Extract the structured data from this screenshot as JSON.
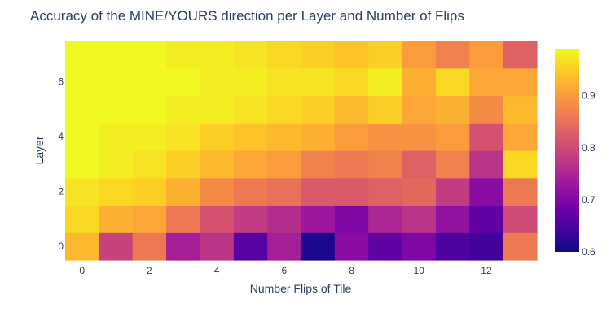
{
  "chart_data": {
    "type": "heatmap",
    "title": "Accuracy of the MINE/YOURS direction per Layer and Number of Flips",
    "xlabel": "Number Flips of Tile",
    "ylabel": "Layer",
    "x": [
      0,
      1,
      2,
      3,
      4,
      5,
      6,
      7,
      8,
      9,
      10,
      11,
      12,
      13
    ],
    "y": [
      0,
      1,
      2,
      3,
      4,
      5,
      6,
      7
    ],
    "x_ticks": [
      "0",
      "2",
      "4",
      "6",
      "8",
      "10",
      "12"
    ],
    "x_tick_values": [
      0,
      2,
      4,
      6,
      8,
      10,
      12
    ],
    "y_ticks": [
      "0",
      "2",
      "4",
      "6"
    ],
    "y_tick_values": [
      0,
      2,
      4,
      6
    ],
    "z": [
      [
        0.93,
        0.79,
        0.86,
        0.74,
        0.77,
        0.66,
        0.74,
        0.61,
        0.71,
        0.67,
        0.7,
        0.65,
        0.64,
        0.86
      ],
      [
        0.96,
        0.92,
        0.91,
        0.86,
        0.81,
        0.78,
        0.76,
        0.73,
        0.7,
        0.75,
        0.77,
        0.72,
        0.67,
        0.8
      ],
      [
        0.97,
        0.96,
        0.95,
        0.92,
        0.88,
        0.86,
        0.85,
        0.82,
        0.82,
        0.83,
        0.84,
        0.78,
        0.71,
        0.86
      ],
      [
        0.99,
        0.98,
        0.97,
        0.95,
        0.93,
        0.91,
        0.9,
        0.87,
        0.86,
        0.87,
        0.83,
        0.87,
        0.77,
        0.96
      ],
      [
        0.99,
        0.98,
        0.98,
        0.97,
        0.95,
        0.94,
        0.93,
        0.92,
        0.9,
        0.89,
        0.89,
        0.9,
        0.81,
        0.91
      ],
      [
        0.99,
        0.99,
        0.99,
        0.98,
        0.98,
        0.97,
        0.96,
        0.95,
        0.93,
        0.95,
        0.91,
        0.92,
        0.88,
        0.93
      ],
      [
        0.99,
        0.99,
        0.99,
        0.99,
        0.98,
        0.98,
        0.97,
        0.97,
        0.96,
        0.98,
        0.92,
        0.96,
        0.91,
        0.91
      ],
      [
        0.99,
        0.99,
        0.99,
        0.98,
        0.98,
        0.97,
        0.96,
        0.95,
        0.94,
        0.95,
        0.9,
        0.87,
        0.9,
        0.83
      ]
    ],
    "zmin": 0.6,
    "zmax": 0.99,
    "colorscale": "Plasma",
    "colorbar_ticks": [
      "0.6",
      "0.7",
      "0.8",
      "0.9"
    ],
    "colorbar_tick_values": [
      0.6,
      0.7,
      0.8,
      0.9
    ]
  }
}
